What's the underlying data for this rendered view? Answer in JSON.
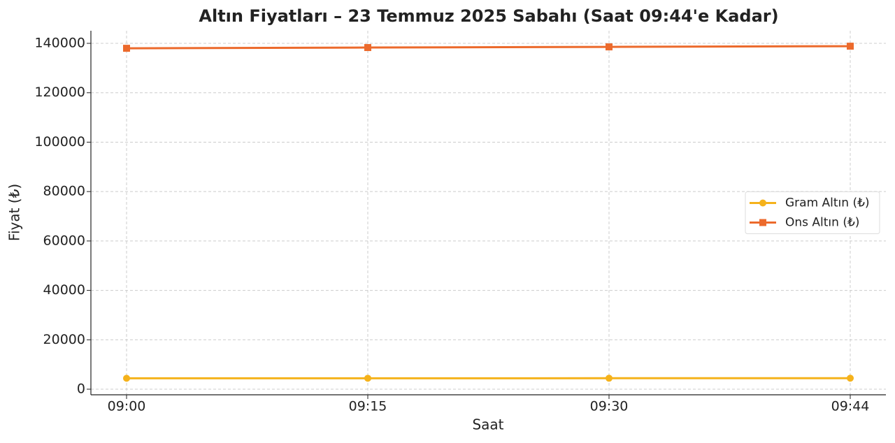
{
  "chart_data": {
    "type": "line",
    "title": "Altın Fiyatları – 23 Temmuz 2025 Sabahı (Saat 09:44'e Kadar)",
    "xlabel": "Saat",
    "ylabel": "Fiyat (₺)",
    "categories": [
      "09:00",
      "09:15",
      "09:30",
      "09:44"
    ],
    "series": [
      {
        "name": "Gram Altın (₺)",
        "color": "#f5b21b",
        "marker": "circle",
        "values": [
          4420,
          4430,
          4440,
          4450
        ]
      },
      {
        "name": "Ons Altın (₺)",
        "color": "#ec6a2c",
        "marker": "square",
        "values": [
          138000,
          138300,
          138570,
          138850
        ]
      }
    ],
    "ylim": [
      -2260,
      145100
    ],
    "yticks": [
      0,
      20000,
      40000,
      60000,
      80000,
      100000,
      120000,
      140000
    ],
    "grid": true,
    "legend": "center right"
  }
}
